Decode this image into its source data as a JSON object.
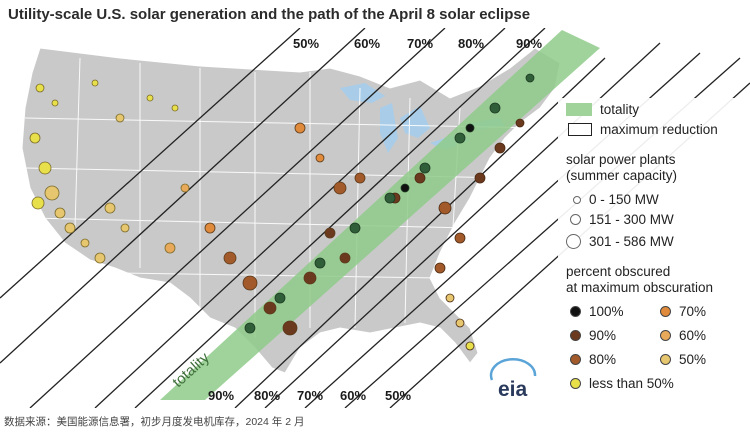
{
  "title": "Utility-scale U.S. solar generation and the path of the April 8 solar eclipse",
  "top_percent_labels": [
    "50%",
    "60%",
    "70%",
    "80%",
    "90%"
  ],
  "bottom_percent_labels": [
    "90%",
    "80%",
    "70%",
    "60%",
    "50%"
  ],
  "totality_label": "totality",
  "logo_text": "eia",
  "legend": {
    "totality": "totality",
    "max_reduction": "maximum reduction",
    "plants_heading_1": "solar power plants",
    "plants_heading_2": "(summer capacity)",
    "sizes": [
      "0 - 150 MW",
      "151 - 300 MW",
      "301 - 586 MW"
    ],
    "obscured_heading_1": "percent obscured",
    "obscured_heading_2": "at maximum obscuration",
    "obscuration": [
      {
        "label": "100%",
        "color": "#111111"
      },
      {
        "label": "70%",
        "color": "#e08a3c"
      },
      {
        "label": "90%",
        "color": "#6b3a1e"
      },
      {
        "label": "60%",
        "color": "#e8a95a"
      },
      {
        "label": "80%",
        "color": "#a35a2a"
      },
      {
        "label": "50%",
        "color": "#e6c770"
      },
      {
        "label": "less than 50%",
        "color": "#e8e04a"
      }
    ]
  },
  "colors": {
    "land": "#c9c9c9",
    "water": "#a9cde8",
    "totality_band": "#8fcb8a",
    "plant_totality": "#2f5e38"
  },
  "footer": "数据来源：美国能源信息署，初步月度发电机库存，2024 年 2 月"
}
